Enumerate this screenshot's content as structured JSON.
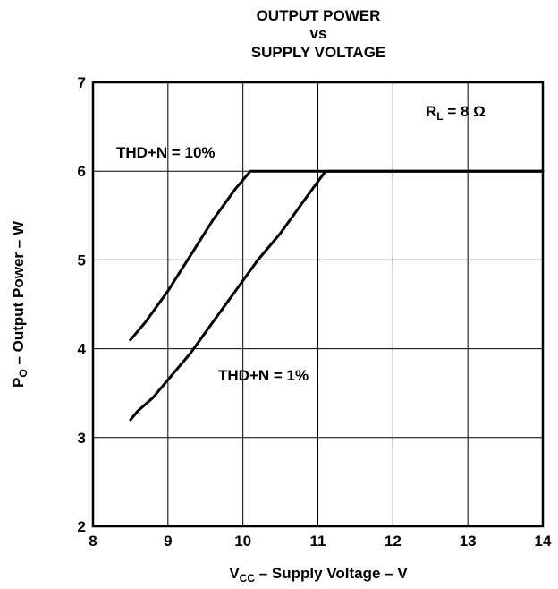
{
  "chart_data": {
    "type": "line",
    "title": [
      "OUTPUT POWER",
      "vs",
      "SUPPLY VOLTAGE"
    ],
    "xlabel": {
      "main": "V",
      "sub": "CC",
      "rest": " – Supply Voltage – V"
    },
    "ylabel": {
      "main": "P",
      "sub": "O",
      "rest": " – Output Power – W"
    },
    "xlim": [
      8,
      14
    ],
    "ylim": [
      2,
      7
    ],
    "xticks": [
      8,
      9,
      10,
      11,
      12,
      13,
      14
    ],
    "yticks": [
      2,
      3,
      4,
      5,
      6,
      7
    ],
    "grid": true,
    "annotations": {
      "load": {
        "main": "R",
        "sub": "L",
        "rest": " = 8 Ω"
      },
      "series_10": "THD+N = 10%",
      "series_1": "THD+N = 1%"
    },
    "series": [
      {
        "x": [
          8.5,
          8.7,
          9.0,
          9.3,
          9.6,
          9.9,
          10.1,
          14.0
        ],
        "y": [
          4.1,
          4.3,
          4.65,
          5.05,
          5.45,
          5.8,
          6.0,
          6.0
        ]
      },
      {
        "x": [
          8.5,
          8.6,
          8.8,
          9.0,
          9.3,
          9.6,
          9.9,
          10.2,
          10.5,
          10.8,
          11.1,
          14.0
        ],
        "y": [
          3.2,
          3.3,
          3.45,
          3.65,
          3.95,
          4.3,
          4.65,
          5.0,
          5.3,
          5.65,
          6.0,
          6.0
        ]
      }
    ]
  }
}
